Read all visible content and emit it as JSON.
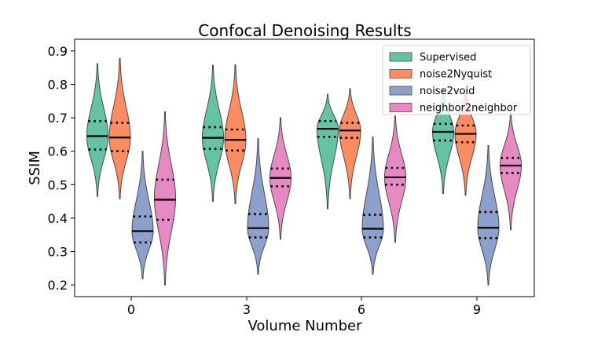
{
  "chart_data": {
    "type": "violin",
    "title": "Confocal Denoising Results",
    "xlabel": "Volume Number",
    "ylabel": "SSIM",
    "ylim": [
      0.165,
      0.935
    ],
    "yticks": [
      "0.2",
      "0.3",
      "0.4",
      "0.5",
      "0.6",
      "0.7",
      "0.8",
      "0.9"
    ],
    "categories": [
      "0",
      "3",
      "6",
      "9"
    ],
    "legend_position": "top-right",
    "series": [
      {
        "name": "Supervised",
        "color": "#66c2a5",
        "values": [
          {
            "min": 0.465,
            "q1": 0.605,
            "median": 0.645,
            "q3": 0.69,
            "max": 0.862,
            "mode": 0.645
          },
          {
            "min": 0.45,
            "q1": 0.607,
            "median": 0.64,
            "q3": 0.672,
            "max": 0.857,
            "mode": 0.64
          },
          {
            "min": 0.428,
            "q1": 0.643,
            "median": 0.667,
            "q3": 0.69,
            "max": 0.77,
            "mode": 0.667
          },
          {
            "min": 0.473,
            "q1": 0.632,
            "median": 0.658,
            "q3": 0.682,
            "max": 0.79,
            "mode": 0.658
          }
        ]
      },
      {
        "name": "noise2Nyquist",
        "color": "#fc8d62",
        "values": [
          {
            "min": 0.458,
            "q1": 0.6,
            "median": 0.641,
            "q3": 0.685,
            "max": 0.878,
            "mode": 0.641
          },
          {
            "min": 0.443,
            "q1": 0.602,
            "median": 0.634,
            "q3": 0.665,
            "max": 0.858,
            "mode": 0.634
          },
          {
            "min": 0.458,
            "q1": 0.64,
            "median": 0.662,
            "q3": 0.685,
            "max": 0.787,
            "mode": 0.662
          },
          {
            "min": 0.468,
            "q1": 0.627,
            "median": 0.652,
            "q3": 0.677,
            "max": 0.785,
            "mode": 0.652
          }
        ]
      },
      {
        "name": "noise2void",
        "color": "#8da0cb",
        "values": [
          {
            "min": 0.218,
            "q1": 0.327,
            "median": 0.361,
            "q3": 0.405,
            "max": 0.6,
            "mode": 0.36
          },
          {
            "min": 0.232,
            "q1": 0.342,
            "median": 0.37,
            "q3": 0.412,
            "max": 0.638,
            "mode": 0.37
          },
          {
            "min": 0.232,
            "q1": 0.342,
            "median": 0.368,
            "q3": 0.41,
            "max": 0.642,
            "mode": 0.368
          },
          {
            "min": 0.2,
            "q1": 0.34,
            "median": 0.371,
            "q3": 0.418,
            "max": 0.617,
            "mode": 0.371
          }
        ]
      },
      {
        "name": "neighbor2neighbor",
        "color": "#e78ac3",
        "values": [
          {
            "min": 0.2,
            "q1": 0.395,
            "median": 0.455,
            "q3": 0.515,
            "max": 0.718,
            "mode": 0.46
          },
          {
            "min": 0.337,
            "q1": 0.495,
            "median": 0.52,
            "q3": 0.548,
            "max": 0.7,
            "mode": 0.52
          },
          {
            "min": 0.328,
            "q1": 0.5,
            "median": 0.522,
            "q3": 0.55,
            "max": 0.705,
            "mode": 0.522
          },
          {
            "min": 0.365,
            "q1": 0.535,
            "median": 0.557,
            "q3": 0.58,
            "max": 0.715,
            "mode": 0.557
          }
        ]
      }
    ]
  }
}
